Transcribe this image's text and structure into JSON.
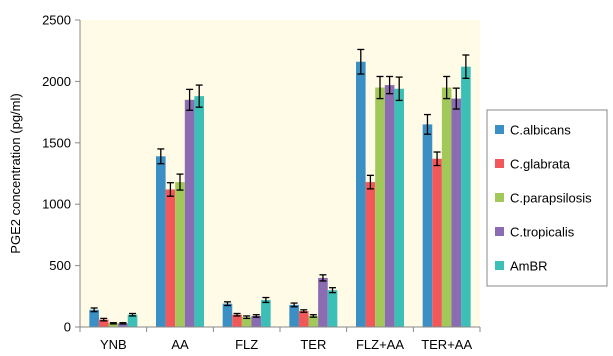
{
  "chart_data": {
    "type": "bar",
    "title": "",
    "xlabel": "",
    "ylabel": "PGE2 concentration (pg/ml)",
    "ylim": [
      0,
      2500
    ],
    "yticks": [
      0,
      500,
      1000,
      1500,
      2000,
      2500
    ],
    "grid": false,
    "legend_position": "right",
    "plot_background": "#fffbe6",
    "categories": [
      "YNB",
      "AA",
      "FLZ",
      "TER",
      "FLZ+AA",
      "TER+AA"
    ],
    "series": [
      {
        "name": "C.albicans",
        "color": "#3a8fc4",
        "values": [
          140,
          1390,
          190,
          180,
          2160,
          1650
        ],
        "errors": [
          15,
          60,
          15,
          15,
          100,
          80
        ]
      },
      {
        "name": "C.glabrata",
        "color": "#f2585a",
        "values": [
          60,
          1120,
          100,
          130,
          1180,
          1370
        ],
        "errors": [
          10,
          55,
          10,
          10,
          55,
          55
        ]
      },
      {
        "name": "C.parapsilosis",
        "color": "#a3c85a",
        "values": [
          30,
          1180,
          80,
          90,
          1950,
          1950
        ],
        "errors": [
          5,
          65,
          10,
          10,
          90,
          90
        ]
      },
      {
        "name": "C.tropicalis",
        "color": "#8b6bb1",
        "values": [
          30,
          1850,
          90,
          400,
          1970,
          1860
        ],
        "errors": [
          5,
          85,
          10,
          25,
          70,
          85
        ]
      },
      {
        "name": "AmBR",
        "color": "#3cbfb7",
        "values": [
          100,
          1880,
          220,
          300,
          1940,
          2120
        ],
        "errors": [
          10,
          90,
          20,
          20,
          95,
          95
        ]
      }
    ]
  }
}
